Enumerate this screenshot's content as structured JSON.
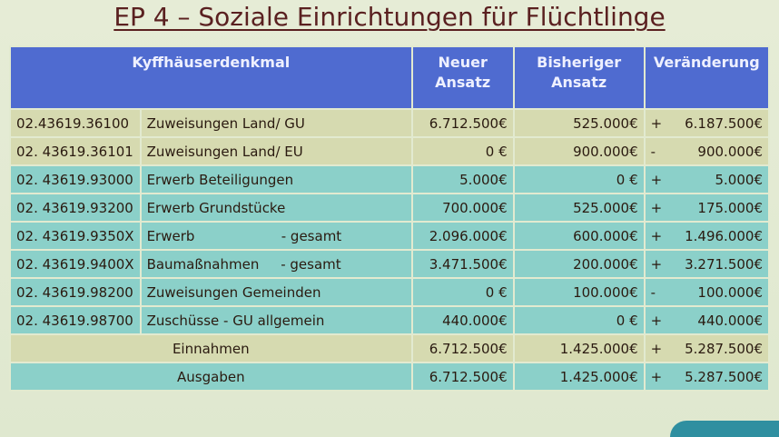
{
  "title": "EP 4 – Soziale Einrichtungen für Flüchtlinge",
  "colors": {
    "header": "#4f6bd0",
    "row_beige": "#d6dab0",
    "row_teal": "#8bd0c9"
  },
  "table": {
    "headers": [
      "Kyffhäuserdenkmal",
      "Neuer Ansatz",
      "Bisheriger Ansatz",
      "Veränderung"
    ],
    "rows": [
      {
        "code": "02.43619.36100",
        "desc": "Zuweisungen Land/ GU",
        "neu": "6.712.500€",
        "bisher": "525.000€",
        "sign": "+",
        "change": "6.187.500€"
      },
      {
        "code": "02. 43619.36101",
        "desc": "Zuweisungen Land/ EU",
        "neu": "0 €",
        "bisher": "900.000€",
        "sign": "-",
        "change": "900.000€"
      },
      {
        "code": "02. 43619.93000",
        "desc": "Erwerb Beteiligungen",
        "neu": "5.000€",
        "bisher": "0 €",
        "sign": "+",
        "change": "5.000€"
      },
      {
        "code": "02. 43619.93200",
        "desc": "Erwerb Grundstücke",
        "neu": "700.000€",
        "bisher": "525.000€",
        "sign": "+",
        "change": "175.000€"
      },
      {
        "code": "02. 43619.9350X",
        "desc": "Erwerb                    - gesamt",
        "neu": "2.096.000€",
        "bisher": "600.000€",
        "sign": "+",
        "change": "1.496.000€"
      },
      {
        "code": "02. 43619.9400X",
        "desc": "Baumaßnahmen     - gesamt",
        "neu": "3.471.500€",
        "bisher": "200.000€",
        "sign": "+",
        "change": "3.271.500€"
      },
      {
        "code": "02. 43619.98200",
        "desc": "Zuweisungen Gemeinden",
        "neu": "0 €",
        "bisher": "100.000€",
        "sign": "-",
        "change": "100.000€"
      },
      {
        "code": "02. 43619.98700",
        "desc": "Zuschüsse - GU allgemein",
        "neu": "440.000€",
        "bisher": "0 €",
        "sign": "+",
        "change": "440.000€"
      }
    ],
    "totals": [
      {
        "label": "Einnahmen",
        "neu": "6.712.500€",
        "bisher": "1.425.000€",
        "sign": "+",
        "change": "5.287.500€"
      },
      {
        "label": "Ausgaben",
        "neu": "6.712.500€",
        "bisher": "1.425.000€",
        "sign": "+",
        "change": "5.287.500€"
      }
    ]
  }
}
